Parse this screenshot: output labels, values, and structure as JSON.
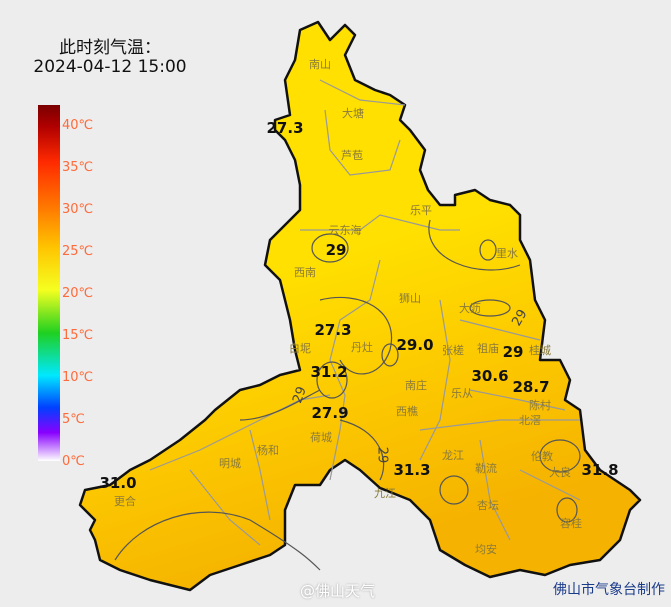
{
  "title": {
    "line1": "此时刻气温：",
    "line2": "2024-04-12 15:00"
  },
  "legend": {
    "ticks": [
      "40℃",
      "35℃",
      "30℃",
      "25℃",
      "20℃",
      "15℃",
      "10℃",
      "5℃",
      "0℃"
    ]
  },
  "towns": [
    "南山",
    "大塘",
    "芦苞",
    "乐平",
    "里水",
    "云东海",
    "西南",
    "狮山",
    "大沥",
    "白坭",
    "丹灶",
    "张槎",
    "祖庙",
    "桂城",
    "南庄",
    "乐从",
    "陈村",
    "西樵",
    "北滘",
    "荷城",
    "杨和",
    "明城",
    "龙江",
    "勒流",
    "伦教",
    "大良",
    "九江",
    "更合",
    "杏坛",
    "容桂",
    "均安"
  ],
  "temperatures": [
    "27.3",
    "29",
    "27.3",
    "29.0",
    "29",
    "31.2",
    "30.6",
    "28.7",
    "27.9",
    "31.3",
    "31.8",
    "31.0"
  ],
  "isolines": [
    "29",
    "29",
    "29"
  ],
  "colors": {
    "north_fill": "#ffe600",
    "south_fill": "#f5b400",
    "border": "#111111"
  },
  "credit": "佛山市气象台制作",
  "watermark": "@佛山天气"
}
